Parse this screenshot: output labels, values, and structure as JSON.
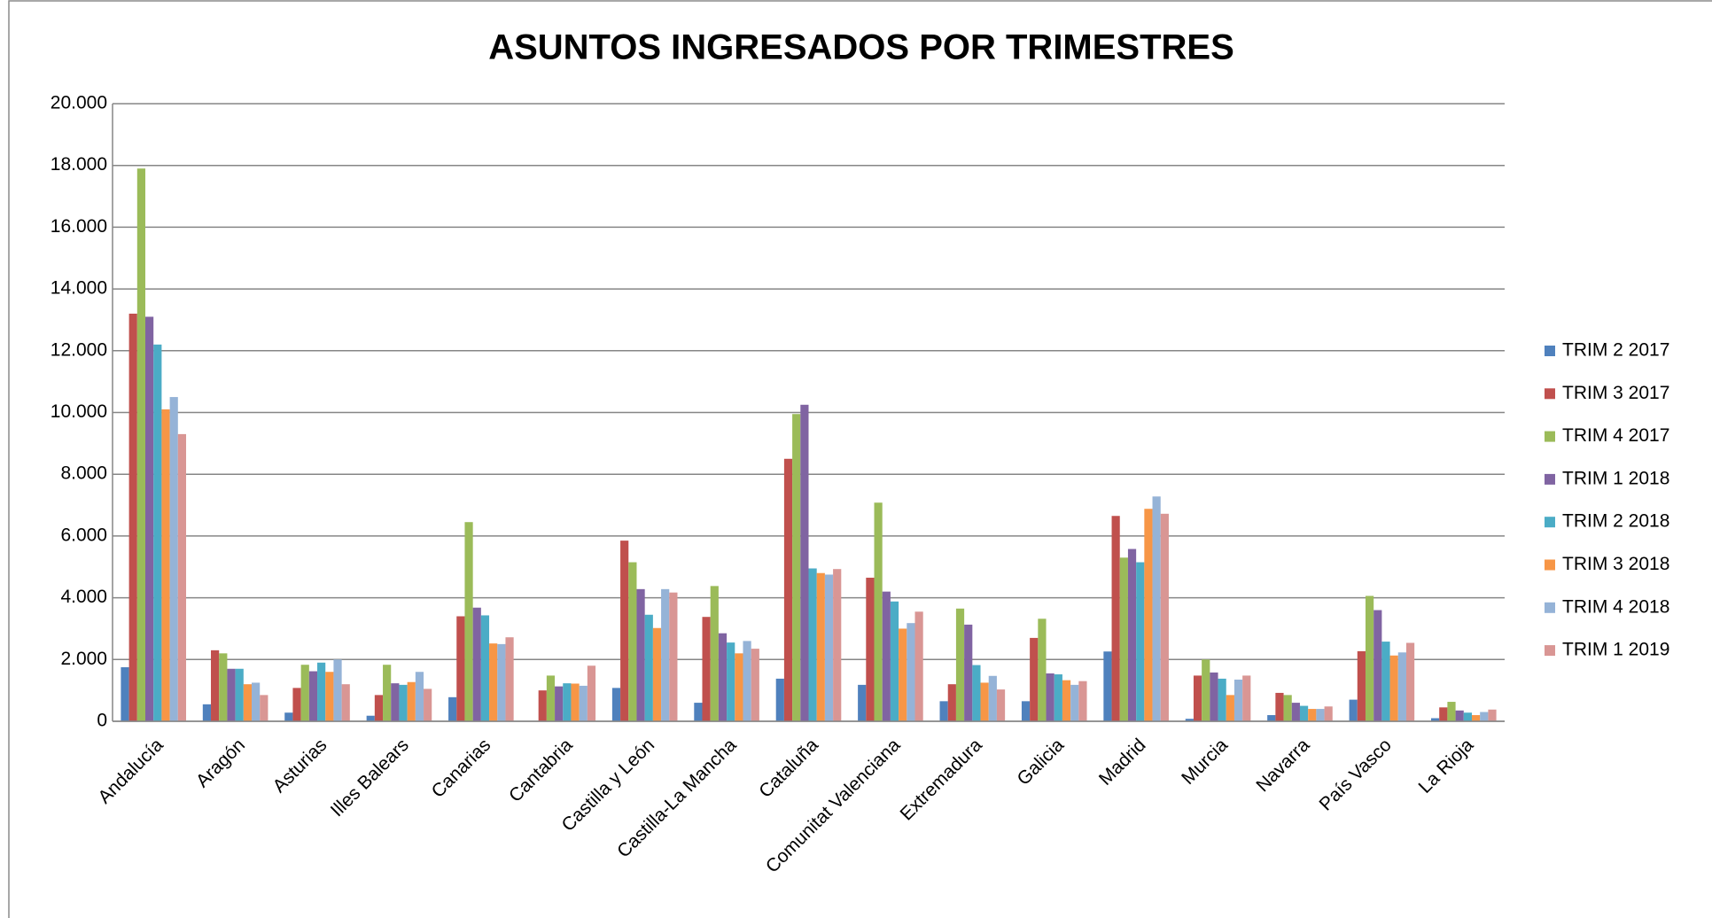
{
  "chart_data": {
    "type": "bar",
    "title": "ASUNTOS INGRESADOS POR TRIMESTRES",
    "categories": [
      "Andalucía",
      "Aragón",
      "Asturias",
      "Illes Balears",
      "Canarias",
      "Cantabria",
      "Castilla y León",
      "Castilla-La Mancha",
      "Cataluña",
      "Comunitat Valenciana",
      "Extremadura",
      "Galicia",
      "Madrid",
      "Murcia",
      "Navarra",
      "País Vasco",
      "La Rioja"
    ],
    "series": [
      {
        "name": "TRIM 2 2017",
        "color": "#4F81BD",
        "values": [
          1750,
          550,
          280,
          180,
          780,
          0,
          1080,
          600,
          1380,
          1180,
          650,
          650,
          2260,
          80,
          200,
          700,
          100
        ]
      },
      {
        "name": "TRIM 3 2017",
        "color": "#C0504D",
        "values": [
          13200,
          2300,
          1080,
          850,
          3400,
          1000,
          5850,
          3380,
          8500,
          4650,
          1200,
          2700,
          6650,
          1480,
          920,
          2270,
          450
        ]
      },
      {
        "name": "TRIM 4 2017",
        "color": "#9BBB59",
        "values": [
          17900,
          2200,
          1830,
          1830,
          6450,
          1480,
          5150,
          4380,
          9950,
          7080,
          3650,
          3320,
          5300,
          2000,
          850,
          4060,
          630
        ]
      },
      {
        "name": "TRIM 1 2018",
        "color": "#8064A2",
        "values": [
          13100,
          1700,
          1620,
          1230,
          3680,
          1130,
          4280,
          2850,
          10250,
          4200,
          3130,
          1550,
          5580,
          1580,
          600,
          3600,
          350
        ]
      },
      {
        "name": "TRIM 2 2018",
        "color": "#4BACC6",
        "values": [
          12200,
          1700,
          1900,
          1180,
          3430,
          1230,
          3450,
          2550,
          4950,
          3880,
          1820,
          1520,
          5150,
          1380,
          500,
          2580,
          280
        ]
      },
      {
        "name": "TRIM 3 2018",
        "color": "#F79646",
        "values": [
          10100,
          1200,
          1600,
          1270,
          2520,
          1220,
          3020,
          2200,
          4800,
          3000,
          1250,
          1330,
          6880,
          850,
          400,
          2130,
          200
        ]
      },
      {
        "name": "TRIM 4 2018",
        "color": "#95B3D7",
        "values": [
          10500,
          1250,
          2000,
          1600,
          2500,
          1150,
          4280,
          2600,
          4750,
          3180,
          1470,
          1180,
          7280,
          1350,
          400,
          2230,
          300
        ]
      },
      {
        "name": "TRIM 1 2019",
        "color": "#D99694",
        "values": [
          9300,
          850,
          1200,
          1050,
          2720,
          1800,
          4170,
          2350,
          4930,
          3550,
          1030,
          1300,
          6720,
          1480,
          480,
          2540,
          380
        ]
      }
    ],
    "ylim": [
      0,
      20000
    ],
    "yticks": [
      0,
      {
        "value": 2000,
        "label": "2.000"
      },
      {
        "value": 4000,
        "label": "4.000"
      },
      {
        "value": 6000,
        "label": "6.000"
      },
      {
        "value": 8000,
        "label": "8.000"
      },
      {
        "value": 10000,
        "label": "10.000"
      },
      {
        "value": 12000,
        "label": "12.000"
      },
      {
        "value": 14000,
        "label": "14.000"
      },
      {
        "value": 16000,
        "label": "16.000"
      },
      {
        "value": 18000,
        "label": "18.000"
      },
      {
        "value": 20000,
        "label": "20.000"
      }
    ],
    "grid": true,
    "legend": "right"
  }
}
